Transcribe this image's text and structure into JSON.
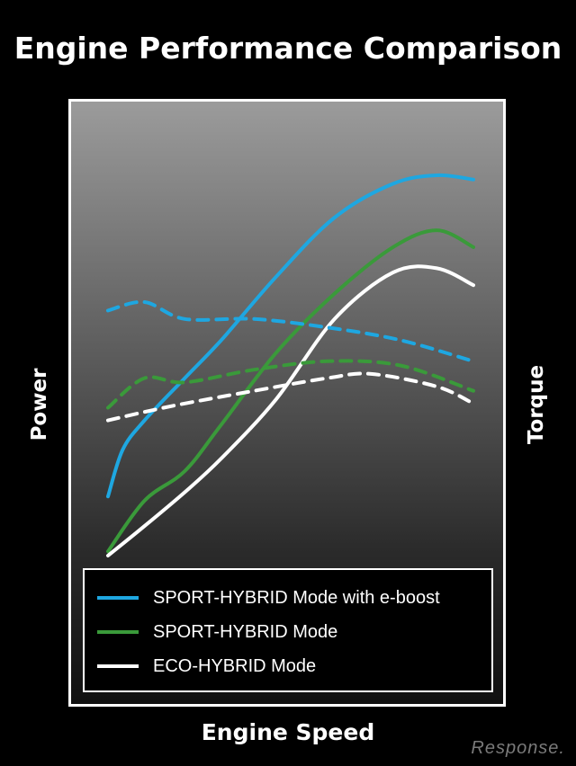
{
  "title": "Engine Performance Comparison",
  "watermark": "Response.",
  "chart_data": {
    "type": "line",
    "title": "Engine Performance Comparison",
    "xlabel": "Engine Speed",
    "ylabel": "Power",
    "ylabel_right": "Torque",
    "grid": false,
    "legend_position": "bottom",
    "colors": {
      "blue": "#1ea7e1",
      "green": "#3a9a3a",
      "white": "#ffffff"
    },
    "legend": [
      {
        "label": "SPORT-HYBRID Mode with e-boost",
        "color": "#1ea7e1"
      },
      {
        "label": "SPORT-HYBRID Mode",
        "color": "#3a9a3a"
      },
      {
        "label": "ECO-HYBRID Mode",
        "color": "#ffffff"
      }
    ],
    "series": [
      {
        "name": "SPORT-HYBRID Mode with e-boost",
        "kind": "power",
        "color": "#1ea7e1",
        "dashed": false,
        "x": [
          0.0,
          0.04,
          0.1,
          0.21,
          0.31,
          0.46,
          0.62,
          0.78,
          0.9,
          1.0
        ],
        "y": [
          0.14,
          0.25,
          0.32,
          0.42,
          0.51,
          0.66,
          0.8,
          0.88,
          0.9,
          0.89
        ]
      },
      {
        "name": "SPORT-HYBRID Mode",
        "kind": "power",
        "color": "#3a9a3a",
        "dashed": false,
        "x": [
          0.0,
          0.1,
          0.21,
          0.31,
          0.46,
          0.62,
          0.78,
          0.9,
          1.0
        ],
        "y": [
          0.01,
          0.13,
          0.2,
          0.31,
          0.48,
          0.62,
          0.73,
          0.77,
          0.73
        ]
      },
      {
        "name": "ECO-HYBRID Mode",
        "kind": "power",
        "color": "#ffffff",
        "dashed": false,
        "x": [
          0.0,
          0.1,
          0.21,
          0.31,
          0.46,
          0.62,
          0.78,
          0.9,
          1.0
        ],
        "y": [
          0.0,
          0.07,
          0.15,
          0.23,
          0.37,
          0.56,
          0.67,
          0.68,
          0.64
        ]
      },
      {
        "name": "SPORT-HYBRID Mode with e-boost",
        "kind": "torque",
        "color": "#1ea7e1",
        "dashed": true,
        "x": [
          0.0,
          0.1,
          0.21,
          0.4,
          0.6,
          0.8,
          1.0
        ],
        "y": [
          0.58,
          0.6,
          0.56,
          0.56,
          0.54,
          0.51,
          0.46
        ]
      },
      {
        "name": "SPORT-HYBRID Mode",
        "kind": "torque",
        "color": "#3a9a3a",
        "dashed": true,
        "x": [
          0.0,
          0.1,
          0.21,
          0.4,
          0.6,
          0.8,
          1.0
        ],
        "y": [
          0.35,
          0.42,
          0.41,
          0.44,
          0.46,
          0.45,
          0.39
        ]
      },
      {
        "name": "ECO-HYBRID Mode",
        "kind": "torque",
        "color": "#ffffff",
        "dashed": true,
        "x": [
          0.0,
          0.1,
          0.21,
          0.4,
          0.6,
          0.72,
          0.9,
          1.0
        ],
        "y": [
          0.32,
          0.34,
          0.36,
          0.39,
          0.42,
          0.43,
          0.4,
          0.36
        ]
      }
    ]
  }
}
